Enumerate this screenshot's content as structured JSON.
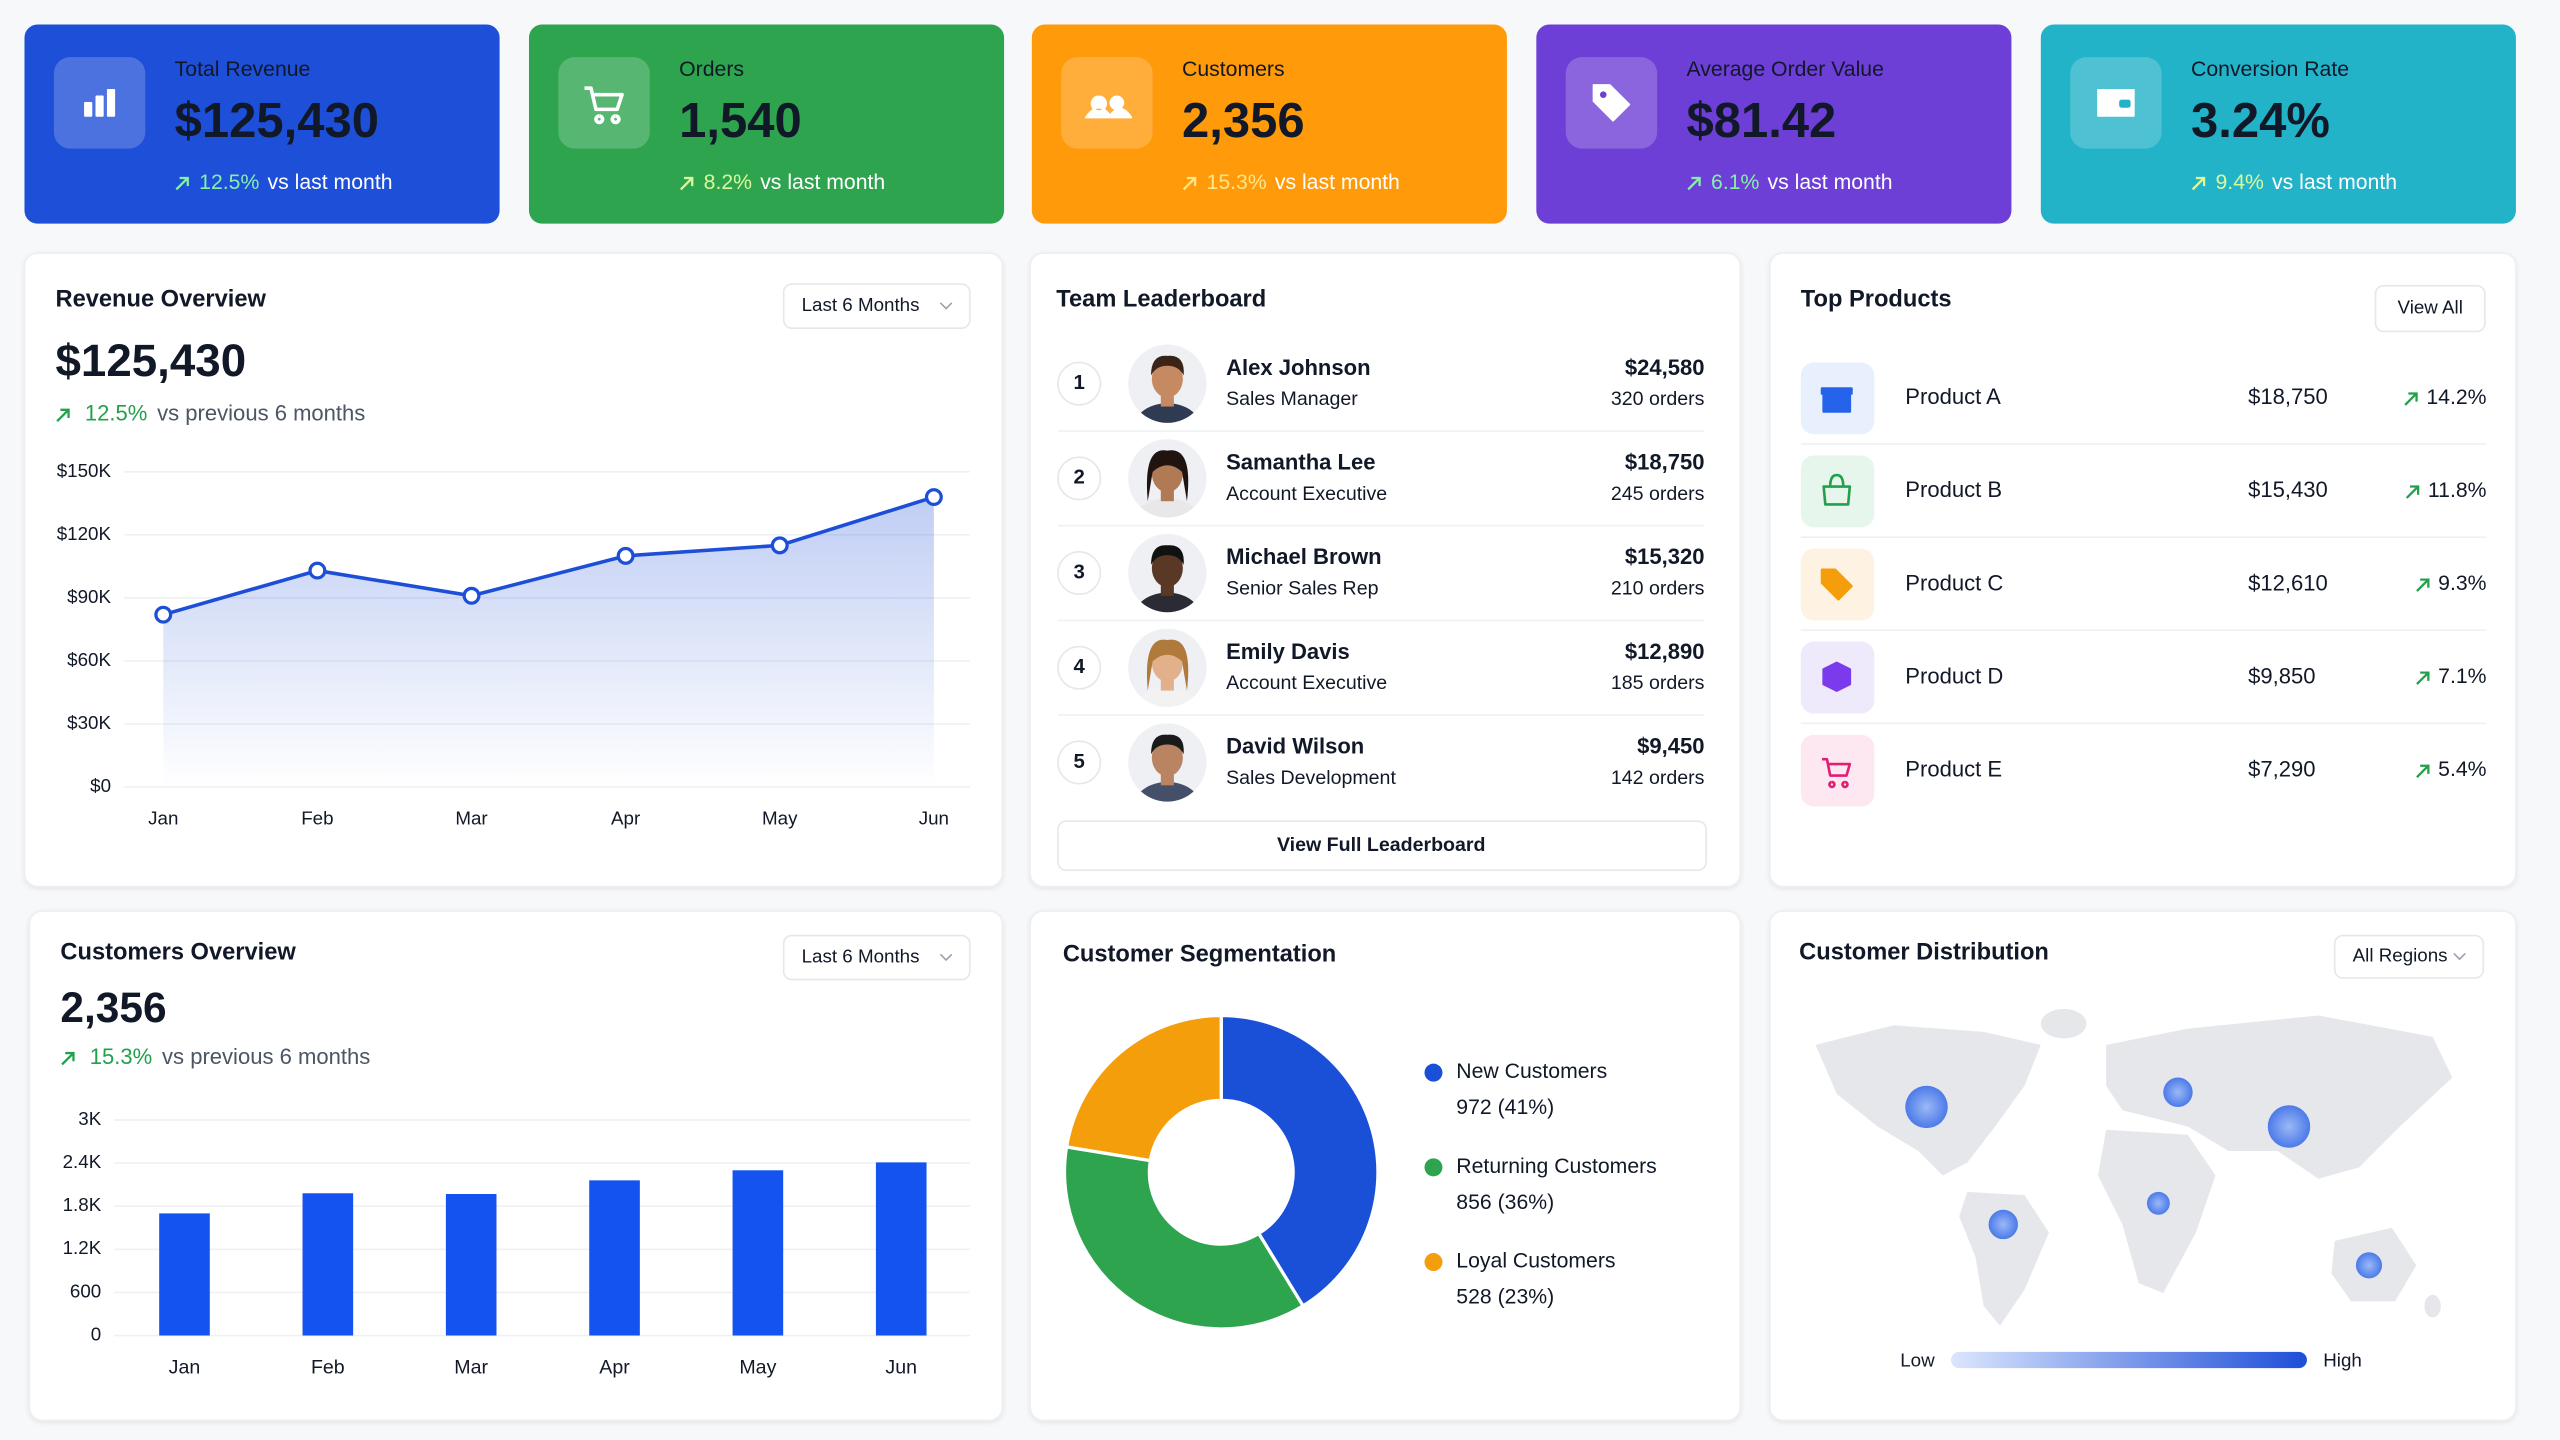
{
  "kpis": [
    {
      "label": "Total Revenue",
      "value": "$125,430",
      "change": "12.5%",
      "note": "vs last month"
    },
    {
      "label": "Orders",
      "value": "1,540",
      "change": "8.2%",
      "note": "vs last month"
    },
    {
      "label": "Customers",
      "value": "2,356",
      "change": "15.3%",
      "note": "vs last month"
    },
    {
      "label": "Average Order Value",
      "value": "$81.42",
      "change": "6.1%",
      "note": "vs last month"
    },
    {
      "label": "Conversion Rate",
      "value": "3.24%",
      "change": "9.4%",
      "note": "vs last month"
    }
  ],
  "revenue_overview": {
    "title": "Revenue Overview",
    "filter": "Last 6 Months",
    "total": "$125,430",
    "change": "12.5%",
    "note": "vs previous 6 months",
    "chart": {
      "type": "line",
      "categories": [
        "Jan",
        "Feb",
        "Mar",
        "Apr",
        "May",
        "Jun"
      ],
      "values": [
        82000,
        103000,
        91000,
        110000,
        115000,
        138000
      ],
      "color": "#1d4ed8",
      "ylim": [
        0,
        150000
      ],
      "yticks": [
        {
          "value": 0,
          "label": "$0"
        },
        {
          "value": 30000,
          "label": "$30K"
        },
        {
          "value": 60000,
          "label": "$60K"
        },
        {
          "value": 90000,
          "label": "$90K"
        },
        {
          "value": 120000,
          "label": "$120K"
        },
        {
          "value": 150000,
          "label": "$150K"
        }
      ],
      "grid": true
    }
  },
  "leaderboard": {
    "title": "Team Leaderboard",
    "button": "View Full Leaderboard",
    "rows": [
      {
        "rank": "1",
        "name": "Alex Johnson",
        "role": "Sales Manager",
        "amount": "$24,580",
        "orders": "320 orders"
      },
      {
        "rank": "2",
        "name": "Samantha Lee",
        "role": "Account Executive",
        "amount": "$18,750",
        "orders": "245 orders"
      },
      {
        "rank": "3",
        "name": "Michael Brown",
        "role": "Senior Sales Rep",
        "amount": "$15,320",
        "orders": "210 orders"
      },
      {
        "rank": "4",
        "name": "Emily Davis",
        "role": "Account Executive",
        "amount": "$12,890",
        "orders": "185 orders"
      },
      {
        "rank": "5",
        "name": "David Wilson",
        "role": "Sales Development",
        "amount": "$9,450",
        "orders": "142 orders"
      }
    ]
  },
  "top_products": {
    "title": "Top Products",
    "button": "View All",
    "rows": [
      {
        "name": "Product A",
        "amount": "$18,750",
        "change": "14.2%"
      },
      {
        "name": "Product B",
        "amount": "$15,430",
        "change": "11.8%"
      },
      {
        "name": "Product C",
        "amount": "$12,610",
        "change": "9.3%"
      },
      {
        "name": "Product D",
        "amount": "$9,850",
        "change": "7.1%"
      },
      {
        "name": "Product E",
        "amount": "$7,290",
        "change": "5.4%"
      }
    ]
  },
  "customers_overview": {
    "title": "Customers Overview",
    "filter": "Last 6 Months",
    "total": "2,356",
    "change": "15.3%",
    "note": "vs previous 6 months",
    "chart": {
      "type": "bar",
      "categories": [
        "Jan",
        "Feb",
        "Mar",
        "Apr",
        "May",
        "Jun"
      ],
      "values": [
        1700,
        1980,
        1970,
        2160,
        2300,
        2410
      ],
      "color": "#1553f0",
      "ylim": [
        0,
        3000
      ],
      "yticks": [
        0,
        600,
        {
          "value": 1200,
          "label": "1.2K"
        },
        {
          "value": 1800,
          "label": "1.8K"
        },
        {
          "value": 2400,
          "label": "2.4K"
        },
        {
          "value": 3000,
          "label": "3K"
        }
      ],
      "grid": true
    }
  },
  "segmentation": {
    "title": "Customer Segmentation",
    "chart": {
      "type": "pie",
      "series": [
        {
          "name": "New Customers",
          "color": "#1a4fd8"
        },
        {
          "name": "Returning Customers",
          "color": "#2ea44f"
        },
        {
          "name": "Loyal Customers",
          "color": "#f59e0b"
        }
      ],
      "values": [
        972,
        856,
        528
      ],
      "value_labels": [
        "972 (41%)",
        "856 (36%)",
        "528 (23%)"
      ]
    }
  },
  "distribution": {
    "title": "Customer Distribution",
    "filter": "All Regions",
    "legend_low": "Low",
    "legend_high": "High"
  }
}
